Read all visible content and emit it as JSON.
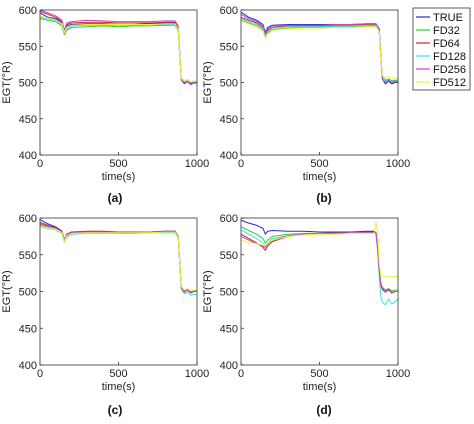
{
  "legend": [
    {
      "name": "TRUE",
      "color": "#2a2acb"
    },
    {
      "name": "FD32",
      "color": "#33cc33"
    },
    {
      "name": "FD64",
      "color": "#cc2233"
    },
    {
      "name": "FD128",
      "color": "#33e5e5"
    },
    {
      "name": "FD256",
      "color": "#cc44cc"
    },
    {
      "name": "FD512",
      "color": "#f2f233"
    }
  ],
  "chart_data": [
    {
      "type": "line",
      "panel_label": "(a)",
      "xlabel": "time(s)",
      "ylabel": "EGT(°R)",
      "xlim": [
        0,
        1000
      ],
      "ylim": [
        400,
        600
      ],
      "xticks": [
        0,
        500,
        1000
      ],
      "yticks": [
        400,
        450,
        500,
        550,
        600
      ],
      "grid": false,
      "x": [
        0,
        50,
        100,
        140,
        155,
        170,
        200,
        300,
        400,
        500,
        600,
        700,
        800,
        860,
        880,
        890,
        900,
        920,
        940,
        960,
        980,
        1000
      ],
      "series": [
        {
          "name": "TRUE",
          "values": [
            596,
            590,
            588,
            582,
            570,
            578,
            580,
            581,
            581,
            580,
            580,
            581,
            582,
            582,
            575,
            540,
            505,
            500,
            503,
            499,
            500,
            501
          ]
        },
        {
          "name": "FD32",
          "values": [
            588,
            586,
            584,
            578,
            566,
            572,
            576,
            577,
            578,
            577,
            578,
            578,
            579,
            579,
            572,
            538,
            506,
            502,
            504,
            501,
            502,
            502
          ]
        },
        {
          "name": "FD64",
          "values": [
            598,
            594,
            590,
            584,
            570,
            580,
            582,
            583,
            583,
            582,
            582,
            582,
            583,
            583,
            576,
            540,
            504,
            499,
            502,
            498,
            500,
            500
          ]
        },
        {
          "name": "FD128",
          "values": [
            590,
            588,
            585,
            580,
            568,
            574,
            578,
            579,
            579,
            579,
            579,
            580,
            580,
            580,
            573,
            539,
            505,
            501,
            503,
            500,
            501,
            501
          ]
        },
        {
          "name": "FD256",
          "values": [
            600,
            596,
            592,
            586,
            572,
            582,
            584,
            586,
            585,
            584,
            584,
            584,
            585,
            585,
            578,
            542,
            503,
            498,
            501,
            497,
            499,
            499
          ]
        },
        {
          "name": "FD512",
          "values": [
            592,
            589,
            586,
            581,
            569,
            576,
            579,
            580,
            580,
            580,
            580,
            580,
            581,
            581,
            574,
            539,
            506,
            502,
            504,
            501,
            502,
            502
          ]
        }
      ]
    },
    {
      "type": "line",
      "panel_label": "(b)",
      "xlabel": "time(s)",
      "ylabel": "EGT(°R)",
      "xlim": [
        0,
        1000
      ],
      "ylim": [
        400,
        600
      ],
      "xticks": [
        0,
        500,
        1000
      ],
      "yticks": [
        400,
        450,
        500,
        550,
        600
      ],
      "grid": false,
      "x": [
        0,
        50,
        100,
        140,
        155,
        170,
        200,
        300,
        400,
        500,
        600,
        700,
        800,
        860,
        880,
        890,
        900,
        920,
        940,
        960,
        980,
        1000
      ],
      "series": [
        {
          "name": "TRUE",
          "values": [
            597,
            590,
            586,
            580,
            569,
            576,
            579,
            580,
            580,
            580,
            580,
            580,
            581,
            581,
            574,
            540,
            505,
            498,
            502,
            498,
            500,
            500
          ]
        },
        {
          "name": "FD32",
          "values": [
            586,
            582,
            578,
            572,
            562,
            568,
            573,
            575,
            576,
            576,
            577,
            577,
            578,
            578,
            571,
            538,
            507,
            503,
            505,
            502,
            503,
            503
          ]
        },
        {
          "name": "FD64",
          "values": [
            590,
            586,
            582,
            576,
            565,
            572,
            576,
            578,
            578,
            578,
            579,
            579,
            580,
            580,
            573,
            539,
            506,
            502,
            504,
            501,
            502,
            502
          ]
        },
        {
          "name": "FD128",
          "values": [
            588,
            584,
            580,
            574,
            564,
            570,
            575,
            577,
            577,
            577,
            578,
            578,
            579,
            579,
            572,
            538,
            506,
            502,
            504,
            501,
            502,
            502
          ]
        },
        {
          "name": "FD256",
          "values": [
            594,
            588,
            584,
            578,
            567,
            574,
            578,
            579,
            579,
            579,
            580,
            580,
            581,
            581,
            574,
            540,
            505,
            500,
            503,
            500,
            501,
            501
          ]
        },
        {
          "name": "FD512",
          "values": [
            585,
            581,
            577,
            571,
            561,
            567,
            572,
            574,
            575,
            575,
            576,
            576,
            577,
            577,
            570,
            537,
            510,
            506,
            508,
            505,
            506,
            506
          ]
        }
      ]
    },
    {
      "type": "line",
      "panel_label": "(c)",
      "xlabel": "time(s)",
      "ylabel": "EGT(°R)",
      "xlim": [
        0,
        1000
      ],
      "ylim": [
        400,
        600
      ],
      "xticks": [
        0,
        500,
        1000
      ],
      "yticks": [
        400,
        450,
        500,
        550,
        600
      ],
      "grid": false,
      "x": [
        0,
        50,
        100,
        140,
        155,
        170,
        200,
        300,
        400,
        500,
        600,
        700,
        800,
        860,
        880,
        890,
        900,
        920,
        940,
        960,
        980,
        1000
      ],
      "series": [
        {
          "name": "TRUE",
          "values": [
            598,
            592,
            588,
            582,
            570,
            578,
            580,
            581,
            581,
            580,
            580,
            581,
            582,
            582,
            575,
            540,
            505,
            500,
            503,
            499,
            500,
            500
          ]
        },
        {
          "name": "FD32",
          "values": [
            590,
            588,
            585,
            580,
            568,
            575,
            579,
            580,
            580,
            580,
            580,
            580,
            581,
            581,
            574,
            540,
            506,
            501,
            503,
            500,
            501,
            501
          ]
        },
        {
          "name": "FD64",
          "values": [
            594,
            590,
            587,
            582,
            570,
            578,
            581,
            582,
            582,
            581,
            581,
            581,
            582,
            582,
            575,
            541,
            505,
            499,
            502,
            498,
            500,
            500
          ]
        },
        {
          "name": "FD128",
          "values": [
            588,
            586,
            584,
            579,
            567,
            574,
            578,
            579,
            579,
            579,
            579,
            580,
            580,
            580,
            573,
            538,
            503,
            497,
            499,
            495,
            496,
            496
          ]
        },
        {
          "name": "FD256",
          "values": [
            592,
            589,
            586,
            581,
            569,
            577,
            580,
            581,
            581,
            580,
            580,
            581,
            581,
            581,
            574,
            540,
            505,
            500,
            502,
            499,
            500,
            500
          ]
        },
        {
          "name": "FD512",
          "values": [
            589,
            587,
            585,
            580,
            568,
            576,
            579,
            580,
            580,
            580,
            580,
            580,
            581,
            581,
            574,
            539,
            507,
            502,
            504,
            501,
            502,
            502
          ]
        }
      ]
    },
    {
      "type": "line",
      "panel_label": "(d)",
      "xlabel": "time(s)",
      "ylabel": "EGT(°R)",
      "xlim": [
        0,
        1000
      ],
      "ylim": [
        400,
        600
      ],
      "xticks": [
        0,
        500,
        1000
      ],
      "yticks": [
        400,
        450,
        500,
        550,
        600
      ],
      "grid": false,
      "x": [
        0,
        50,
        100,
        140,
        155,
        170,
        200,
        300,
        400,
        500,
        600,
        700,
        800,
        850,
        860,
        870,
        880,
        890,
        900,
        920,
        940,
        960,
        980,
        1000
      ],
      "series": [
        {
          "name": "TRUE",
          "values": [
            597,
            593,
            590,
            586,
            578,
            582,
            583,
            582,
            582,
            581,
            581,
            581,
            582,
            582,
            580,
            560,
            530,
            510,
            505,
            500,
            503,
            499,
            500,
            500
          ]
        },
        {
          "name": "FD32",
          "values": [
            588,
            583,
            578,
            572,
            566,
            570,
            575,
            578,
            579,
            579,
            579,
            580,
            580,
            580,
            579,
            560,
            532,
            512,
            506,
            502,
            504,
            501,
            502,
            502
          ]
        },
        {
          "name": "FD64",
          "values": [
            578,
            572,
            566,
            560,
            556,
            562,
            568,
            575,
            578,
            579,
            580,
            580,
            581,
            581,
            580,
            558,
            528,
            508,
            503,
            499,
            502,
            498,
            500,
            500
          ]
        },
        {
          "name": "FD128",
          "values": [
            584,
            578,
            572,
            566,
            562,
            566,
            572,
            576,
            578,
            579,
            579,
            580,
            580,
            580,
            579,
            556,
            520,
            495,
            485,
            482,
            490,
            483,
            486,
            490
          ]
        },
        {
          "name": "FD256",
          "values": [
            575,
            570,
            565,
            562,
            560,
            565,
            570,
            576,
            578,
            579,
            579,
            580,
            580,
            580,
            579,
            558,
            528,
            510,
            505,
            500,
            502,
            499,
            500,
            500
          ]
        },
        {
          "name": "FD512",
          "values": [
            570,
            567,
            565,
            563,
            562,
            566,
            570,
            575,
            577,
            578,
            578,
            579,
            579,
            579,
            595,
            580,
            540,
            522,
            520,
            520,
            520,
            520,
            521,
            520
          ]
        }
      ]
    }
  ]
}
